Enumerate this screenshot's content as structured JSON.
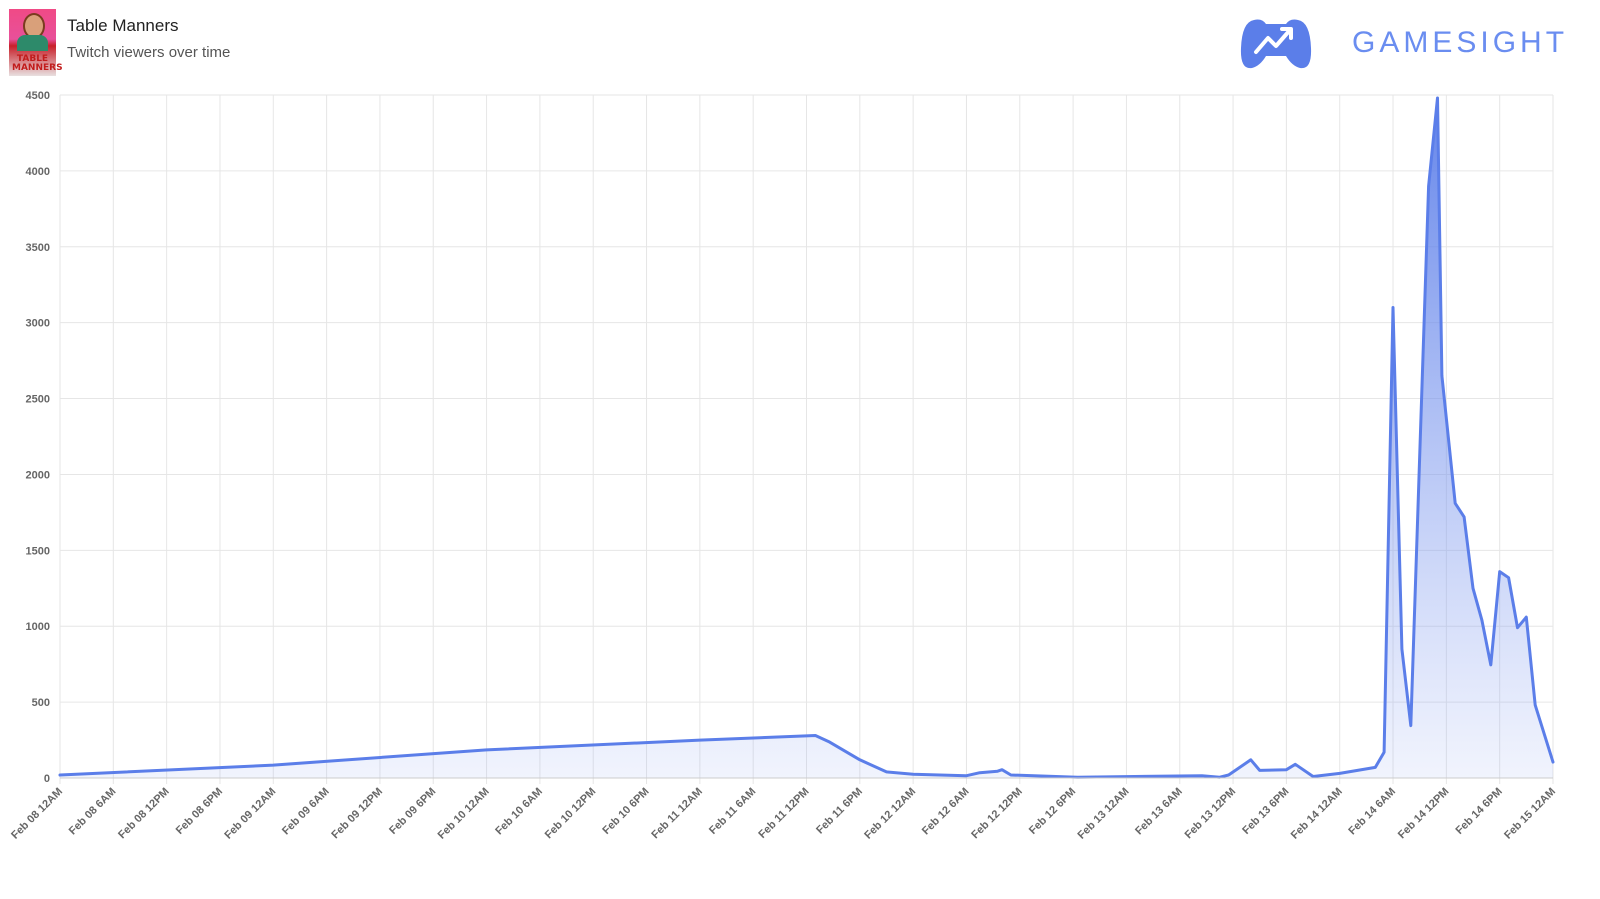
{
  "header": {
    "title": "Table Manners",
    "subtitle": "Twitch viewers over time",
    "thumbnail_text": "TABLE MANNERS"
  },
  "brand": {
    "name": "GAMESIGHT",
    "icon": "gamepad-trend-icon",
    "color": "#6a8df0"
  },
  "chart_data": {
    "type": "area",
    "title": "Twitch viewers over time",
    "xlabel": "",
    "ylabel": "",
    "ylim": [
      0,
      4500
    ],
    "yticks": [
      0,
      500,
      1000,
      1500,
      2000,
      2500,
      3000,
      3500,
      4000,
      4500
    ],
    "xlim": [
      "Feb 08 00:00",
      "Feb 15 00:00"
    ],
    "xtick_labels": [
      "Feb 08 12AM",
      "Feb 08 6AM",
      "Feb 08 12PM",
      "Feb 08 6PM",
      "Feb 09 12AM",
      "Feb 09 6AM",
      "Feb 09 12PM",
      "Feb 09 6PM",
      "Feb 10 12AM",
      "Feb 10 6AM",
      "Feb 10 12PM",
      "Feb 10 6PM",
      "Feb 11 12AM",
      "Feb 11 6AM",
      "Feb 11 12PM",
      "Feb 11 6PM",
      "Feb 12 12AM",
      "Feb 12 6AM",
      "Feb 12 12PM",
      "Feb 12 6PM",
      "Feb 13 12AM",
      "Feb 13 6AM",
      "Feb 13 12PM",
      "Feb 13 6PM",
      "Feb 14 12AM",
      "Feb 14 6AM",
      "Feb 14 12PM",
      "Feb 14 6PM",
      "Feb 15 12AM"
    ],
    "grid": true,
    "line_color": "#5b7ee9",
    "fill_color": "#6a8cf0",
    "points": [
      [
        "Feb 08 00:00",
        20
      ],
      [
        "Feb 09 00:00",
        85
      ],
      [
        "Feb 10 00:00",
        185
      ],
      [
        "Feb 11 00:00",
        250
      ],
      [
        "Feb 11 13:00",
        280
      ],
      [
        "Feb 11 14:30",
        240
      ],
      [
        "Feb 11 18:00",
        120
      ],
      [
        "Feb 11 21:00",
        40
      ],
      [
        "Feb 12 00:00",
        25
      ],
      [
        "Feb 12 06:00",
        15
      ],
      [
        "Feb 12 07:30",
        35
      ],
      [
        "Feb 12 09:30",
        45
      ],
      [
        "Feb 12 10:00",
        55
      ],
      [
        "Feb 12 11:00",
        20
      ],
      [
        "Feb 12 18:30",
        5
      ],
      [
        "Feb 13 08:30",
        15
      ],
      [
        "Feb 13 10:30",
        5
      ],
      [
        "Feb 13 11:30",
        20
      ],
      [
        "Feb 13 14:00",
        120
      ],
      [
        "Feb 13 15:00",
        50
      ],
      [
        "Feb 13 18:00",
        55
      ],
      [
        "Feb 13 19:00",
        90
      ],
      [
        "Feb 13 21:00",
        10
      ],
      [
        "Feb 14 00:00",
        30
      ],
      [
        "Feb 14 04:00",
        70
      ],
      [
        "Feb 14 05:00",
        170
      ],
      [
        "Feb 14 06:00",
        3100
      ],
      [
        "Feb 14 07:00",
        850
      ],
      [
        "Feb 14 08:00",
        345
      ],
      [
        "Feb 14 10:00",
        3900
      ],
      [
        "Feb 14 11:00",
        4480
      ],
      [
        "Feb 14 11:30",
        2650
      ],
      [
        "Feb 14 13:00",
        1810
      ],
      [
        "Feb 14 14:00",
        1720
      ],
      [
        "Feb 14 15:00",
        1250
      ],
      [
        "Feb 14 16:00",
        1040
      ],
      [
        "Feb 14 17:00",
        745
      ],
      [
        "Feb 14 18:00",
        1360
      ],
      [
        "Feb 14 19:00",
        1320
      ],
      [
        "Feb 14 20:00",
        990
      ],
      [
        "Feb 14 21:00",
        1060
      ],
      [
        "Feb 14 22:00",
        480
      ],
      [
        "Feb 15 00:00",
        105
      ]
    ]
  }
}
